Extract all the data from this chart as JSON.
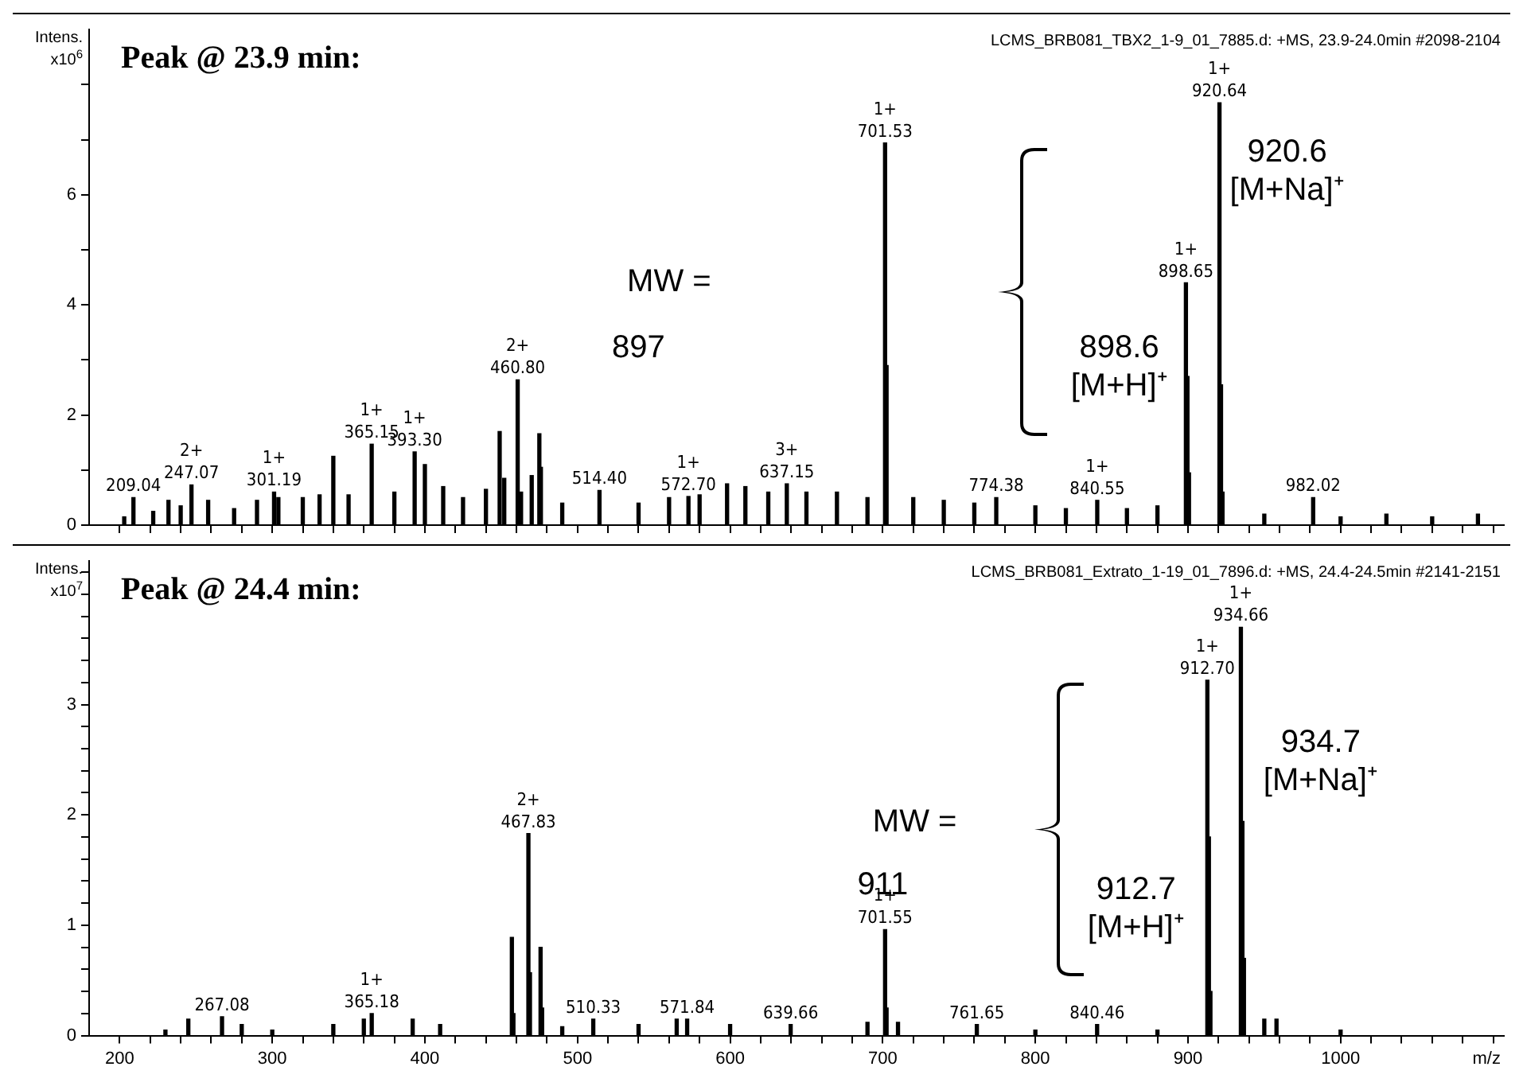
{
  "chart_data": [
    {
      "type": "bar",
      "title": "Peak @ 23.9 min:",
      "subtitle": "LCMS_BRB081_TBX2_1-9_01_7885.d: +MS, 23.9-24.0min #2098-2104",
      "ylabel": "Intens. x10$^{6}$",
      "color": "#000000",
      "grid": false,
      "tick_labels": "y",
      "x": [
        203,
        209.04,
        222,
        232,
        240,
        247.07,
        258,
        275,
        290,
        301.19,
        304,
        320,
        331,
        340,
        350,
        365.15,
        380,
        393.3,
        400,
        412,
        425,
        440,
        449,
        452,
        460.8,
        463,
        470,
        475,
        476,
        490,
        514.4,
        540,
        560,
        572.7,
        580,
        598,
        610,
        625,
        637.15,
        650,
        670,
        690,
        701.53,
        702.5,
        720,
        740,
        760,
        774.38,
        800,
        820,
        840.55,
        860,
        880,
        898.65,
        899.65,
        900.65,
        920.64,
        921.64,
        922.6,
        950,
        982.02,
        1000,
        1030,
        1060,
        1090
      ],
      "values": [
        0.15,
        0.5,
        0.25,
        0.45,
        0.35,
        0.73,
        0.45,
        0.3,
        0.45,
        0.6,
        0.5,
        0.5,
        0.55,
        1.25,
        0.55,
        1.47,
        0.6,
        1.33,
        1.1,
        0.7,
        0.5,
        0.65,
        1.7,
        0.85,
        2.64,
        0.6,
        0.9,
        1.66,
        1.05,
        0.4,
        0.63,
        0.4,
        0.5,
        0.52,
        0.55,
        0.75,
        0.7,
        0.6,
        0.75,
        0.6,
        0.6,
        0.5,
        6.94,
        2.9,
        0.5,
        0.45,
        0.4,
        0.5,
        0.35,
        0.3,
        0.45,
        0.3,
        0.35,
        4.4,
        2.7,
        0.95,
        7.67,
        2.55,
        0.6,
        0.2,
        0.5,
        0.15,
        0.2,
        0.15,
        0.2
      ],
      "xlim": [
        180,
        1107
      ],
      "xticks": [
        200,
        {
          "value": 220,
          "label": null
        },
        {
          "value": 240,
          "label": null
        },
        {
          "value": 260,
          "label": null
        },
        {
          "value": 280,
          "label": null
        },
        300,
        {
          "value": 320,
          "label": null
        },
        {
          "value": 340,
          "label": null
        },
        {
          "value": 360,
          "label": null
        },
        {
          "value": 380,
          "label": null
        },
        400,
        {
          "value": 420,
          "label": null
        },
        {
          "value": 440,
          "label": null
        },
        {
          "value": 460,
          "label": null
        },
        {
          "value": 480,
          "label": null
        },
        500,
        {
          "value": 520,
          "label": null
        },
        {
          "value": 540,
          "label": null
        },
        {
          "value": 560,
          "label": null
        },
        {
          "value": 580,
          "label": null
        },
        600,
        {
          "value": 620,
          "label": null
        },
        {
          "value": 640,
          "label": null
        },
        {
          "value": 660,
          "label": null
        },
        {
          "value": 680,
          "label": null
        },
        700,
        {
          "value": 720,
          "label": null
        },
        {
          "value": 740,
          "label": null
        },
        {
          "value": 760,
          "label": null
        },
        {
          "value": 780,
          "label": null
        },
        800,
        {
          "value": 820,
          "label": null
        },
        {
          "value": 840,
          "label": null
        },
        {
          "value": 860,
          "label": null
        },
        {
          "value": 880,
          "label": null
        },
        900,
        {
          "value": 920,
          "label": null
        },
        {
          "value": 940,
          "label": null
        },
        {
          "value": 960,
          "label": null
        },
        {
          "value": 980,
          "label": null
        },
        1000,
        {
          "value": 1020,
          "label": null
        },
        {
          "value": 1040,
          "label": null
        },
        {
          "value": 1060,
          "label": null
        },
        {
          "value": 1080,
          "label": null
        },
        {
          "value": 1100,
          "label": null
        }
      ],
      "ylim": [
        0,
        9
      ],
      "yticks": [
        0,
        {
          "value": 1,
          "label": null
        },
        2,
        {
          "value": 3,
          "label": null
        },
        4,
        {
          "value": 5,
          "label": null
        },
        6,
        {
          "value": 7,
          "label": null
        },
        {
          "value": 8,
          "label": null
        }
      ],
      "annotations": [
        {
          "text": "209.04",
          "x": 209.04,
          "y": 0.5
        },
        {
          "text": "2+\n247.07",
          "x": 247.07,
          "y": 0.73
        },
        {
          "text": "1+\n301.19",
          "x": 301.19,
          "y": 0.6
        },
        {
          "text": "1+\n365.15",
          "x": 365.15,
          "y": 1.47
        },
        {
          "text": "1+\n393.30",
          "x": 393.3,
          "y": 1.33
        },
        {
          "text": "2+\n460.80",
          "x": 460.8,
          "y": 2.64
        },
        {
          "text": "514.40",
          "x": 514.4,
          "y": 0.63
        },
        {
          "text": "1+\n572.70",
          "x": 572.7,
          "y": 0.52
        },
        {
          "text": "3+\n637.15",
          "x": 637.15,
          "y": 0.75
        },
        {
          "text": "1+\n701.53",
          "x": 701.53,
          "y": 6.94
        },
        {
          "text": "774.38",
          "x": 774.38,
          "y": 0.5
        },
        {
          "text": "1+\n840.55",
          "x": 840.55,
          "y": 0.45
        },
        {
          "text": "1+\n898.65",
          "x": 898.65,
          "y": 4.4
        },
        {
          "text": "1+\n920.64",
          "x": 920.64,
          "y": 7.67
        },
        {
          "text": "982.02",
          "x": 982.02,
          "y": 0.5
        },
        "MW =",
        "897",
        "920.6\n[M+Na]⁺",
        "898.6\n[M+H]⁺"
      ]
    },
    {
      "type": "bar",
      "title": "Peak @ 24.4 min:",
      "subtitle": "LCMS_BRB081_Extrato_1-19_01_7896.d: +MS, 24.4-24.5min #2141-2151",
      "ylabel": "Intens. x10$^{7}$",
      "xlabel": "m/z",
      "color": "#000000",
      "grid": false,
      "x": [
        230,
        245,
        267.08,
        280,
        300,
        340,
        360,
        365.18,
        392,
        410,
        457,
        458,
        467.83,
        468.83,
        475.8,
        476.8,
        490,
        510.33,
        540,
        565,
        571.84,
        600,
        639.66,
        690,
        701.55,
        702.5,
        710,
        761.65,
        800,
        840.46,
        880,
        912.7,
        913.7,
        914.7,
        934.66,
        935.66,
        936.66,
        950,
        958,
        1000
      ],
      "values": [
        0.05,
        0.15,
        0.17,
        0.1,
        0.05,
        0.1,
        0.15,
        0.2,
        0.15,
        0.1,
        0.89,
        0.2,
        1.83,
        0.57,
        0.8,
        0.25,
        0.08,
        0.15,
        0.1,
        0.15,
        0.15,
        0.1,
        0.1,
        0.12,
        0.96,
        0.25,
        0.12,
        0.1,
        0.05,
        0.1,
        0.05,
        3.22,
        1.8,
        0.4,
        3.7,
        1.94,
        0.7,
        0.15,
        0.15,
        0.05
      ],
      "xlim": [
        180,
        1107
      ],
      "xticks": [
        200,
        {
          "value": 220,
          "label": null
        },
        {
          "value": 240,
          "label": null
        },
        {
          "value": 260,
          "label": null
        },
        {
          "value": 280,
          "label": null
        },
        300,
        {
          "value": 320,
          "label": null
        },
        {
          "value": 340,
          "label": null
        },
        {
          "value": 360,
          "label": null
        },
        {
          "value": 380,
          "label": null
        },
        400,
        {
          "value": 420,
          "label": null
        },
        {
          "value": 440,
          "label": null
        },
        {
          "value": 460,
          "label": null
        },
        {
          "value": 480,
          "label": null
        },
        500,
        {
          "value": 520,
          "label": null
        },
        {
          "value": 540,
          "label": null
        },
        {
          "value": 560,
          "label": null
        },
        {
          "value": 580,
          "label": null
        },
        600,
        {
          "value": 620,
          "label": null
        },
        {
          "value": 640,
          "label": null
        },
        {
          "value": 660,
          "label": null
        },
        {
          "value": 680,
          "label": null
        },
        700,
        {
          "value": 720,
          "label": null
        },
        {
          "value": 740,
          "label": null
        },
        {
          "value": 760,
          "label": null
        },
        {
          "value": 780,
          "label": null
        },
        800,
        {
          "value": 820,
          "label": null
        },
        {
          "value": 840,
          "label": null
        },
        {
          "value": 860,
          "label": null
        },
        {
          "value": 880,
          "label": null
        },
        900,
        {
          "value": 920,
          "label": null
        },
        {
          "value": 940,
          "label": null
        },
        {
          "value": 960,
          "label": null
        },
        {
          "value": 980,
          "label": null
        },
        1000,
        {
          "value": 1020,
          "label": null
        },
        {
          "value": 1040,
          "label": null
        },
        {
          "value": 1060,
          "label": null
        },
        {
          "value": 1080,
          "label": null
        },
        {
          "value": 1100,
          "label": null
        }
      ],
      "ylim": [
        0,
        4.3
      ],
      "yticks": [
        0,
        {
          "value": 0.2,
          "label": null
        },
        {
          "value": 0.4,
          "label": null
        },
        {
          "value": 0.6,
          "label": null
        },
        {
          "value": 0.8,
          "label": null
        },
        1,
        {
          "value": 1.2,
          "label": null
        },
        {
          "value": 1.4,
          "label": null
        },
        {
          "value": 1.6,
          "label": null
        },
        {
          "value": 1.8,
          "label": null
        },
        2,
        {
          "value": 2.2,
          "label": null
        },
        {
          "value": 2.4,
          "label": null
        },
        {
          "value": 2.6,
          "label": null
        },
        {
          "value": 2.8,
          "label": null
        },
        3,
        {
          "value": 3.2,
          "label": null
        },
        {
          "value": 3.4,
          "label": null
        },
        {
          "value": 3.6,
          "label": null
        },
        {
          "value": 3.8,
          "label": null
        },
        {
          "value": 4,
          "label": null
        },
        {
          "value": 4.2,
          "label": null
        }
      ],
      "annotations": [
        {
          "text": "267.08",
          "x": 267.08,
          "y": 0.17
        },
        {
          "text": "1+\n365.18",
          "x": 365.18,
          "y": 0.2
        },
        {
          "text": "2+\n467.83",
          "x": 467.83,
          "y": 1.83
        },
        {
          "text": "510.33",
          "x": 510.33,
          "y": 0.15
        },
        {
          "text": "571.84",
          "x": 571.84,
          "y": 0.15
        },
        {
          "text": "639.66",
          "x": 639.66,
          "y": 0.1
        },
        {
          "text": "1+\n701.55",
          "x": 701.55,
          "y": 0.96
        },
        {
          "text": "761.65",
          "x": 761.65,
          "y": 0.1
        },
        {
          "text": "840.46",
          "x": 840.46,
          "y": 0.1
        },
        {
          "text": "1+\n912.70",
          "x": 912.7,
          "y": 3.22
        },
        {
          "text": "1+\n934.66",
          "x": 934.66,
          "y": 3.7
        },
        "MW =",
        "911",
        "934.7\n[M+Na]⁺",
        "912.7\n[M+H]⁺"
      ]
    }
  ]
}
